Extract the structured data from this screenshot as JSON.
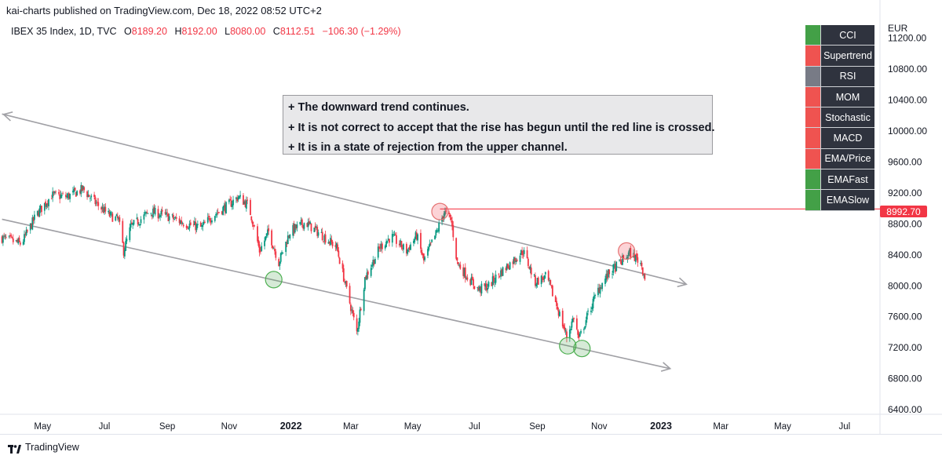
{
  "header": {
    "published": "kai-charts published on TradingView.com, Dec 18, 2022 08:52 UTC+2",
    "symbol": "IBEX 35 Index, 1D, TVC",
    "o_label": "O",
    "o_value": "8189.20",
    "h_label": "H",
    "h_value": "8192.00",
    "l_label": "L",
    "l_value": "8080.00",
    "c_label": "C",
    "c_value": "8112.51",
    "change": "−106.30 (−1.29%)"
  },
  "annotation": {
    "lines": [
      "+ The downward trend continues.",
      "+ It is not correct to accept that the rise has begun until the red line is crossed.",
      "+ It is in a state of rejection from the upper channel."
    ]
  },
  "signals": [
    {
      "name": "CCI",
      "color": "#43a047"
    },
    {
      "name": "Supertrend",
      "color": "#ef5350"
    },
    {
      "name": "RSI",
      "color": "#787b86"
    },
    {
      "name": "MOM",
      "color": "#ef5350"
    },
    {
      "name": "Stochastic",
      "color": "#ef5350"
    },
    {
      "name": "MACD",
      "color": "#ef5350"
    },
    {
      "name": "EMA/Price",
      "color": "#ef5350"
    },
    {
      "name": "EMAFast",
      "color": "#43a047"
    },
    {
      "name": "EMASlow",
      "color": "#43a047"
    }
  ],
  "price_tag": "8992.70",
  "footer": {
    "brand": "TradingView"
  },
  "colors": {
    "up": "#089981",
    "down": "#f23645",
    "channel": "#a0a0a5",
    "resistance": "#f7525f"
  },
  "chart_data": {
    "type": "candlestick",
    "currency": "EUR",
    "y_ticks": [
      "11200.00",
      "10800.00",
      "10400.00",
      "10000.00",
      "9600.00",
      "9200.00",
      "8800.00",
      "8400.00",
      "8000.00",
      "7600.00",
      "7200.00",
      "6800.00",
      "6400.00"
    ],
    "ylim": [
      6340,
      11450
    ],
    "x_labels": [
      {
        "label": "May",
        "date": "2021-05-01"
      },
      {
        "label": "Jul",
        "date": "2021-07-01"
      },
      {
        "label": "Sep",
        "date": "2021-09-01"
      },
      {
        "label": "Nov",
        "date": "2021-11-01"
      },
      {
        "label": "2022",
        "date": "2022-01-01",
        "bold": true
      },
      {
        "label": "Mar",
        "date": "2022-03-01"
      },
      {
        "label": "May",
        "date": "2022-05-01"
      },
      {
        "label": "Jul",
        "date": "2022-07-01"
      },
      {
        "label": "Sep",
        "date": "2022-09-01"
      },
      {
        "label": "Nov",
        "date": "2022-11-01"
      },
      {
        "label": "2023",
        "date": "2023-01-01",
        "bold": true
      },
      {
        "label": "Mar",
        "date": "2023-03-01"
      },
      {
        "label": "May",
        "date": "2023-05-01"
      },
      {
        "label": "Jul",
        "date": "2023-07-01"
      }
    ],
    "xlim": [
      "2021-03-20",
      "2023-08-05"
    ],
    "price_path": [
      [
        "2021-03-22",
        8620
      ],
      [
        "2021-04-10",
        8540
      ],
      [
        "2021-04-25",
        8920
      ],
      [
        "2021-05-10",
        9170
      ],
      [
        "2021-05-25",
        9150
      ],
      [
        "2021-06-10",
        9250
      ],
      [
        "2021-06-20",
        9100
      ],
      [
        "2021-07-05",
        8920
      ],
      [
        "2021-07-15",
        8850
      ],
      [
        "2021-07-20",
        8450
      ],
      [
        "2021-07-27",
        8760
      ],
      [
        "2021-08-15",
        8960
      ],
      [
        "2021-09-01",
        8900
      ],
      [
        "2021-09-20",
        8800
      ],
      [
        "2021-10-05",
        8750
      ],
      [
        "2021-10-15",
        8900
      ],
      [
        "2021-11-01",
        9050
      ],
      [
        "2021-11-10",
        9150
      ],
      [
        "2021-11-20",
        9040
      ],
      [
        "2021-11-26",
        8750
      ],
      [
        "2021-12-01",
        8450
      ],
      [
        "2021-12-10",
        8700
      ],
      [
        "2021-12-20",
        8300
      ],
      [
        "2021-12-31",
        8700
      ],
      [
        "2022-01-15",
        8820
      ],
      [
        "2022-02-01",
        8650
      ],
      [
        "2022-02-15",
        8500
      ],
      [
        "2022-02-24",
        8000
      ],
      [
        "2022-03-07",
        7400
      ],
      [
        "2022-03-15",
        8100
      ],
      [
        "2022-03-30",
        8500
      ],
      [
        "2022-04-10",
        8640
      ],
      [
        "2022-04-25",
        8450
      ],
      [
        "2022-05-05",
        8650
      ],
      [
        "2022-05-12",
        8320
      ],
      [
        "2022-05-25",
        8700
      ],
      [
        "2022-06-01",
        8950
      ],
      [
        "2022-06-08",
        8850
      ],
      [
        "2022-06-14",
        8300
      ],
      [
        "2022-06-25",
        8100
      ],
      [
        "2022-07-05",
        7950
      ],
      [
        "2022-07-15",
        8000
      ],
      [
        "2022-07-25",
        8150
      ],
      [
        "2022-08-10",
        8350
      ],
      [
        "2022-08-18",
        8450
      ],
      [
        "2022-08-30",
        8050
      ],
      [
        "2022-09-10",
        8120
      ],
      [
        "2022-09-20",
        7750
      ],
      [
        "2022-09-30",
        7340
      ],
      [
        "2022-10-07",
        7600
      ],
      [
        "2022-10-12",
        7300
      ],
      [
        "2022-10-20",
        7600
      ],
      [
        "2022-10-31",
        7950
      ],
      [
        "2022-11-10",
        8150
      ],
      [
        "2022-11-20",
        8280
      ],
      [
        "2022-12-01",
        8420
      ],
      [
        "2022-12-07",
        8360
      ],
      [
        "2022-12-12",
        8300
      ],
      [
        "2022-12-16",
        8112
      ]
    ],
    "upper_channel": [
      [
        "2021-03-22",
        10220
      ],
      [
        "2023-01-26",
        8020
      ]
    ],
    "lower_channel": [
      [
        "2021-03-22",
        8860
      ],
      [
        "2023-01-10",
        6930
      ]
    ],
    "resistance_line": {
      "price": 8992.7,
      "from": "2022-05-28"
    },
    "circles": [
      {
        "date": "2022-05-28",
        "price": 8960,
        "color": "red"
      },
      {
        "date": "2022-11-28",
        "price": 8450,
        "color": "red"
      },
      {
        "date": "2021-12-15",
        "price": 8080,
        "color": "green"
      },
      {
        "date": "2022-10-01",
        "price": 7225,
        "color": "green"
      },
      {
        "date": "2022-10-15",
        "price": 7190,
        "color": "green"
      }
    ]
  }
}
